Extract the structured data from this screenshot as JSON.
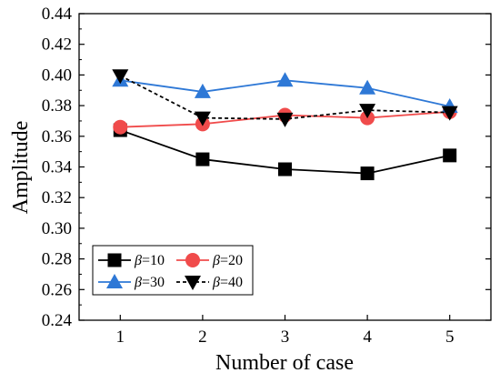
{
  "chart_data": {
    "type": "line",
    "xlabel": "Number of case",
    "ylabel": "Amplitude",
    "x": [
      1,
      2,
      3,
      4,
      5
    ],
    "xlim": [
      0.5,
      5.5
    ],
    "ylim": [
      0.24,
      0.44
    ],
    "x_ticks": [
      "1",
      "2",
      "3",
      "4",
      "5"
    ],
    "y_ticks": [
      "0.24",
      "0.26",
      "0.28",
      "0.30",
      "0.32",
      "0.34",
      "0.36",
      "0.38",
      "0.40",
      "0.42",
      "0.44"
    ],
    "grid": false,
    "legend_position": "bottom-left",
    "series": [
      {
        "name": "β=10",
        "symbol": "β",
        "value_label": "=10",
        "values": [
          0.364,
          0.345,
          0.3385,
          0.3358,
          0.3475
        ],
        "color": "#000000",
        "marker": "square",
        "line_style": "solid"
      },
      {
        "name": "β=20",
        "symbol": "β",
        "value_label": "=20",
        "values": [
          0.366,
          0.368,
          0.3738,
          0.372,
          0.376
        ],
        "color": "#f04b4b",
        "marker": "circle",
        "line_style": "solid"
      },
      {
        "name": "β=30",
        "symbol": "β",
        "value_label": "=30",
        "values": [
          0.3965,
          0.389,
          0.3965,
          0.3915,
          0.3795
        ],
        "color": "#2e78d6",
        "marker": "triangle-up",
        "line_style": "solid"
      },
      {
        "name": "β=40",
        "symbol": "β",
        "value_label": "=40",
        "values": [
          0.3995,
          0.372,
          0.3712,
          0.377,
          0.3755
        ],
        "color": "#000000",
        "marker": "triangle-down",
        "line_style": "dashed"
      }
    ]
  }
}
